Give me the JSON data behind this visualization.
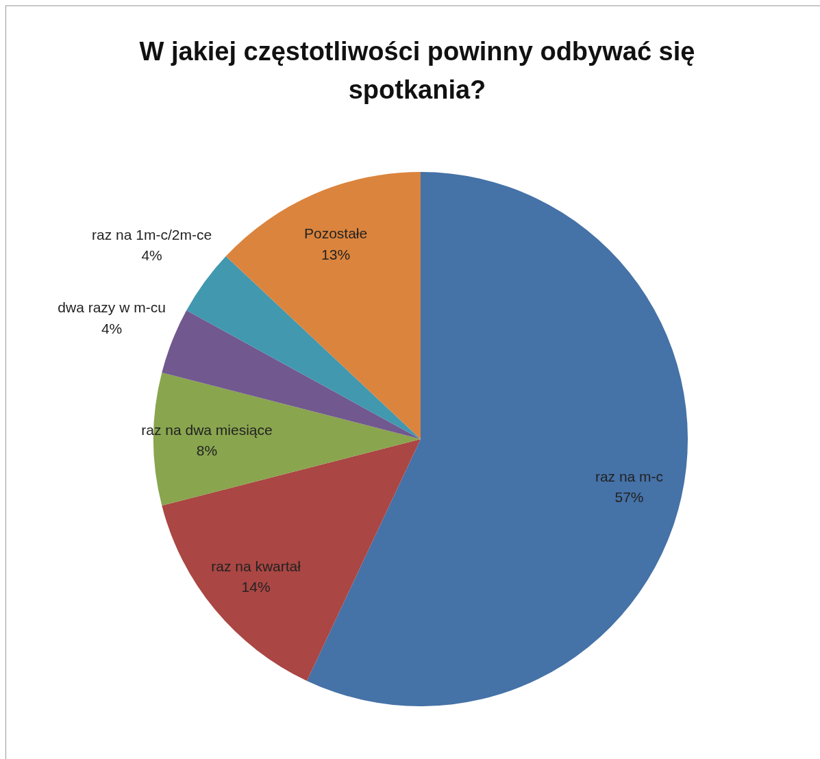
{
  "chart_data": {
    "type": "pie",
    "title": "W jakiej częstotliwości powinny odbywać się spotkania?",
    "categories": [
      "raz na m-c",
      "raz na kwartał",
      "raz na dwa miesiące",
      "dwa razy w m-cu",
      "raz na 1m-c/2m-ce",
      "Pozostałe"
    ],
    "values": [
      57,
      14,
      8,
      4,
      4,
      13
    ],
    "value_labels": [
      "57%",
      "14%",
      "8%",
      "4%",
      "4%",
      "13%"
    ],
    "colors": [
      "#4572a7",
      "#aa4643",
      "#89a54e",
      "#71588f",
      "#4198af",
      "#db843d"
    ]
  }
}
